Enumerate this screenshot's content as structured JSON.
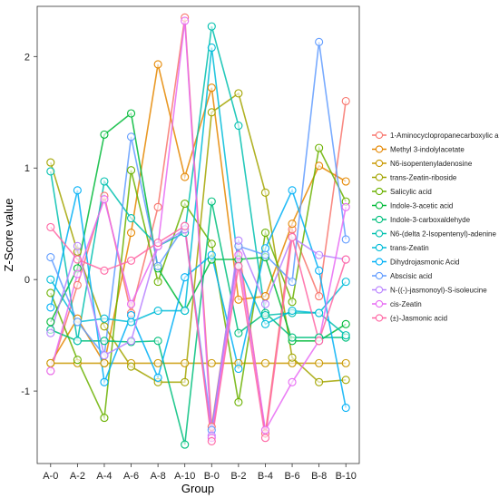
{
  "chart_data": {
    "type": "line",
    "xlabel": "Group",
    "ylabel": "Z-Score value",
    "categories": [
      "A-0",
      "A-2",
      "A-4",
      "A-6",
      "A-8",
      "A-10",
      "B-0",
      "B-2",
      "B-4",
      "B-6",
      "B-8",
      "B-10"
    ],
    "ylim": [
      -1.65,
      2.45
    ],
    "yticks": [
      -1,
      0,
      1,
      2
    ],
    "grid": false,
    "legend_position": "right",
    "series": [
      {
        "name": "1-Aminocyclopropanecarboxylic acid",
        "color": "#F8766D",
        "values": [
          -0.82,
          -0.05,
          0.75,
          -0.3,
          0.65,
          2.35,
          -1.32,
          0.3,
          -1.38,
          0.45,
          -0.15,
          1.6
        ]
      },
      {
        "name": "Methyl 3-indolylacetate",
        "color": "#E58700",
        "values": [
          -0.75,
          -0.35,
          -0.75,
          0.42,
          1.93,
          0.92,
          1.72,
          -0.18,
          -0.15,
          0.5,
          1.02,
          0.88
        ]
      },
      {
        "name": "N6-isopentenyladenosine",
        "color": "#C99800",
        "values": [
          -0.75,
          -0.75,
          -0.75,
          -0.75,
          -0.75,
          -0.75,
          -0.75,
          -0.75,
          -0.75,
          -0.75,
          -0.75,
          -0.75
        ]
      },
      {
        "name": "trans-Zeatin-riboside",
        "color": "#A3A500",
        "values": [
          1.05,
          0.25,
          -0.42,
          -0.78,
          -0.92,
          -0.92,
          1.5,
          1.67,
          0.78,
          -0.7,
          -0.92,
          -0.9
        ]
      },
      {
        "name": "Salicylic acid",
        "color": "#6BB100",
        "values": [
          -0.12,
          -0.72,
          -1.24,
          0.98,
          -0.02,
          0.68,
          0.32,
          -1.1,
          0.42,
          -0.2,
          1.18,
          0.7
        ]
      },
      {
        "name": "Indole-3-acetic acid",
        "color": "#00BA38",
        "values": [
          -0.38,
          0.1,
          1.3,
          1.49,
          0.1,
          -0.28,
          0.18,
          0.18,
          0.2,
          -0.55,
          -0.55,
          -0.4
        ]
      },
      {
        "name": "Indole-3-carboxaldehyde",
        "color": "#00BF7D",
        "values": [
          -0.45,
          -0.55,
          -0.55,
          -0.56,
          -0.55,
          -1.48,
          0.7,
          -0.48,
          -0.3,
          -0.52,
          -0.52,
          -0.52
        ]
      },
      {
        "name": "N6-(delta 2-Isopentenyl)-adenine",
        "color": "#00C0AF",
        "values": [
          0.97,
          -0.55,
          0.88,
          0.55,
          0.3,
          0.42,
          2.27,
          1.38,
          -0.32,
          -0.3,
          -0.3,
          -0.5
        ]
      },
      {
        "name": "trans-Zeatin",
        "color": "#00BCD8",
        "values": [
          0.0,
          -0.38,
          -0.35,
          -0.38,
          -0.28,
          -0.28,
          2.08,
          0.12,
          -0.4,
          -0.28,
          -0.3,
          -0.02
        ]
      },
      {
        "name": "Dihydrojasmonic Acid",
        "color": "#00B0F6",
        "values": [
          -0.25,
          0.8,
          -0.92,
          -0.32,
          -0.88,
          0.02,
          0.22,
          -0.8,
          0.28,
          0.8,
          0.08,
          -1.15
        ]
      },
      {
        "name": "Abscisic acid",
        "color": "#619CFF",
        "values": [
          0.2,
          -0.38,
          -0.68,
          1.28,
          0.12,
          0.48,
          -1.35,
          0.3,
          0.22,
          -0.02,
          2.13,
          0.36
        ]
      },
      {
        "name": "N-((-)-jasmonoyl)-S-isoleucine",
        "color": "#B983FF",
        "values": [
          -0.48,
          0.3,
          -0.68,
          -0.55,
          0.3,
          0.45,
          -1.4,
          0.35,
          -0.22,
          0.38,
          0.22,
          0.18
        ]
      },
      {
        "name": "cis-Zeatin",
        "color": "#E76BF3",
        "values": [
          -0.82,
          0.05,
          0.72,
          -0.22,
          0.3,
          2.32,
          -1.42,
          0.22,
          -1.35,
          -0.92,
          -0.55,
          0.65
        ]
      },
      {
        "name": "(±)-Jasmonic acid",
        "color": "#FF67A4",
        "values": [
          0.47,
          0.18,
          0.08,
          0.17,
          0.33,
          0.48,
          -1.45,
          0.12,
          -1.42,
          0.38,
          -0.55,
          0.18
        ]
      }
    ]
  }
}
